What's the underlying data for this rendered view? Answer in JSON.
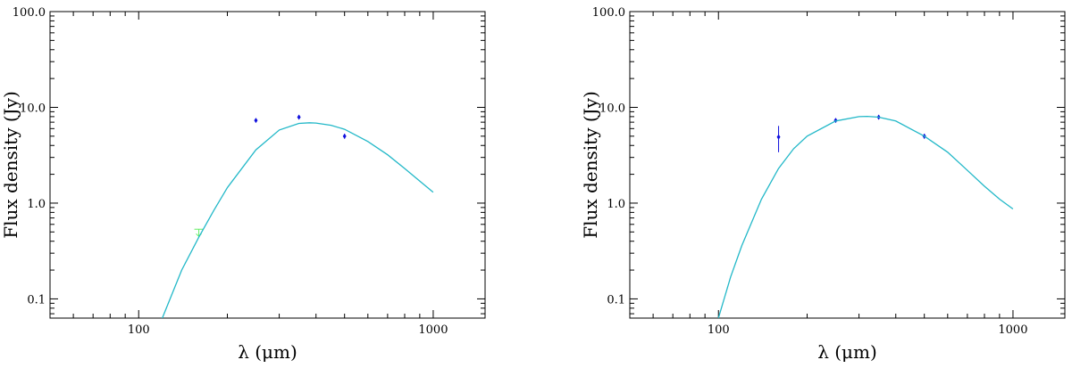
{
  "chart_data": [
    {
      "type": "scatter",
      "xlabel": "λ  (μm)",
      "ylabel": "Flux density (Jy)",
      "xscale": "log",
      "yscale": "log",
      "xlim": [
        50,
        1500
      ],
      "ylim": [
        0.063,
        100
      ],
      "xticks": [
        100,
        1000
      ],
      "xtick_labels": [
        "100",
        "1000"
      ],
      "yticks": [
        0.1,
        1,
        10,
        100
      ],
      "ytick_labels": [
        "0.1",
        "1.0",
        "10.0",
        "100.0"
      ],
      "colors": {
        "model": "#22b8c8",
        "detection": "#1010dd",
        "upper_limit": "#66ee66"
      },
      "series": [
        {
          "kind": "points",
          "x": [
            250,
            350,
            500
          ],
          "y": [
            7.3,
            7.9,
            5.0
          ],
          "yerr": [
            0.35,
            0.4,
            0.3
          ]
        },
        {
          "kind": "upper_limit",
          "x": [
            160
          ],
          "y": [
            0.5
          ]
        },
        {
          "kind": "model_curve",
          "x": [
            120,
            140,
            160,
            180,
            200,
            250,
            300,
            350,
            380,
            400,
            450,
            500,
            600,
            700,
            800,
            900,
            1000
          ],
          "y": [
            0.062,
            0.2,
            0.44,
            0.84,
            1.45,
            3.6,
            5.8,
            6.8,
            6.9,
            6.85,
            6.5,
            5.9,
            4.4,
            3.2,
            2.3,
            1.7,
            1.3
          ]
        }
      ]
    },
    {
      "type": "scatter",
      "xlabel": "λ  (μm)",
      "ylabel": "Flux density (Jy)",
      "xscale": "log",
      "yscale": "log",
      "xlim": [
        50,
        1500
      ],
      "ylim": [
        0.063,
        100
      ],
      "xticks": [
        100,
        1000
      ],
      "xtick_labels": [
        "100",
        "1000"
      ],
      "yticks": [
        0.1,
        1,
        10,
        100
      ],
      "ytick_labels": [
        "0.1",
        "1.0",
        "10.0",
        "100.0"
      ],
      "colors": {
        "model": "#22b8c8",
        "detection": "#1010dd",
        "upper_limit": "#66ee66"
      },
      "series": [
        {
          "kind": "points",
          "x": [
            160,
            250,
            350,
            500
          ],
          "y": [
            4.9,
            7.3,
            7.9,
            5.0
          ],
          "yerr": [
            1.5,
            0.35,
            0.4,
            0.3
          ]
        },
        {
          "kind": "model_curve",
          "x": [
            100,
            110,
            120,
            140,
            160,
            180,
            200,
            250,
            300,
            320,
            350,
            400,
            500,
            600,
            700,
            800,
            900,
            1000
          ],
          "y": [
            0.063,
            0.17,
            0.36,
            1.1,
            2.3,
            3.7,
            5.0,
            7.2,
            8.0,
            8.05,
            7.9,
            7.2,
            5.0,
            3.4,
            2.2,
            1.5,
            1.1,
            0.87
          ]
        }
      ]
    }
  ]
}
